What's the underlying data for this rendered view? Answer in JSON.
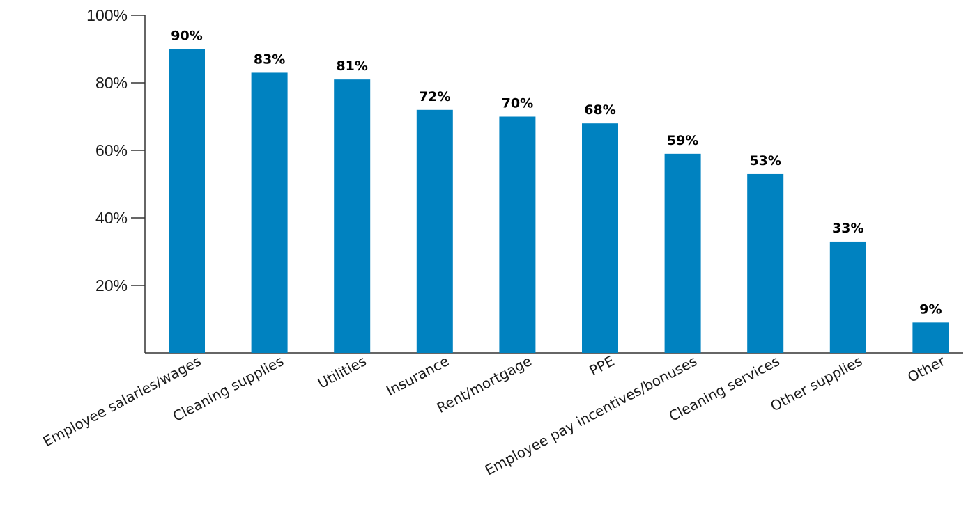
{
  "chart_data": {
    "type": "bar",
    "title": "",
    "xlabel": "",
    "ylabel": "",
    "categories": [
      "Employee salaries/wages",
      "Cleaning supplies",
      "Utilities",
      "Insurance",
      "Rent/mortgage",
      "PPE",
      "Employee pay incentives/bonuses",
      "Cleaning services",
      "Other supplies",
      "Other"
    ],
    "values": [
      90,
      83,
      81,
      72,
      70,
      68,
      59,
      53,
      33,
      9
    ],
    "data_labels": [
      "90%",
      "83%",
      "81%",
      "72%",
      "70%",
      "68%",
      "59%",
      "53%",
      "33%",
      "9%"
    ],
    "yticks": [
      {
        "value": 20,
        "label": "20%"
      },
      {
        "value": 40,
        "label": "40%"
      },
      {
        "value": 60,
        "label": "60%"
      },
      {
        "value": 80,
        "label": "80%"
      },
      {
        "value": 100,
        "label": "100%"
      }
    ],
    "ylim": [
      0,
      100
    ],
    "grid": false,
    "legend": "none",
    "bar_color": "#0082C0"
  }
}
